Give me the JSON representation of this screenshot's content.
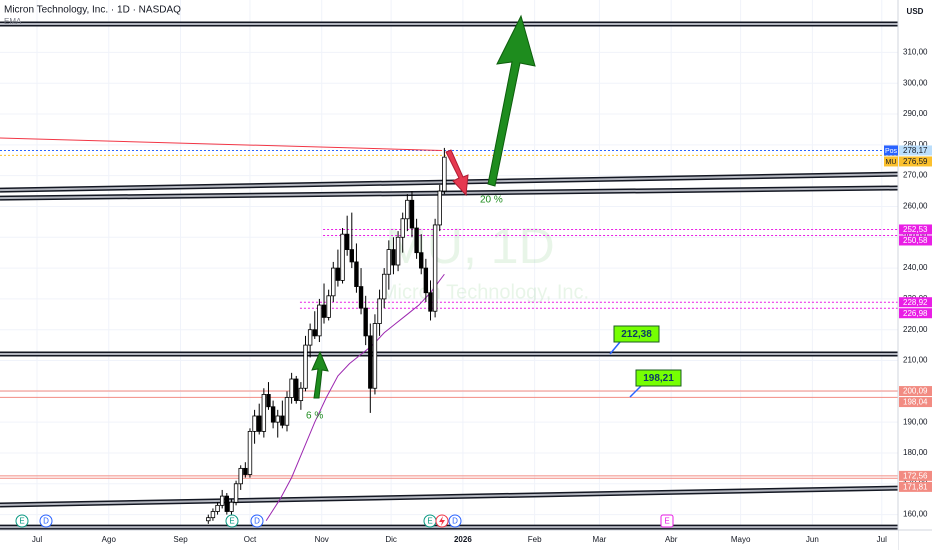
{
  "chart_data": {
    "type": "candlestick",
    "title": "Micron Technology, Inc. · 1D · NASDAQ",
    "currency": "USD",
    "indicator": "EMA",
    "watermark": "MU, 1D",
    "watermark_subtitle": "Micron Technology, Inc.",
    "xlim": [
      -16,
      372
    ],
    "xticks": [
      {
        "value": 0,
        "label": "Jul"
      },
      {
        "value": 31,
        "label": "Ago"
      },
      {
        "value": 62,
        "label": "Sep"
      },
      {
        "value": 92,
        "label": "Oct"
      },
      {
        "value": 123,
        "label": "Nov"
      },
      {
        "value": 153,
        "label": "Dic"
      },
      {
        "value": 184,
        "label": "2026"
      },
      {
        "value": 215,
        "label": "Feb"
      },
      {
        "value": 243,
        "label": "Mar"
      },
      {
        "value": 274,
        "label": "Abr"
      },
      {
        "value": 304,
        "label": "Mayo"
      },
      {
        "value": 335,
        "label": "Jun"
      },
      {
        "value": 365,
        "label": "Jul"
      }
    ],
    "ylim": [
      155,
      327
    ],
    "yticks": [
      {
        "value": 160,
        "label": "160,00"
      },
      {
        "value": 170,
        "label": "170,00"
      },
      {
        "value": 180,
        "label": "180,00"
      },
      {
        "value": 190,
        "label": "190,00"
      },
      {
        "value": 200,
        "label": "200,00"
      },
      {
        "value": 210,
        "label": "210,00"
      },
      {
        "value": 220,
        "label": "220,00"
      },
      {
        "value": 230,
        "label": "230,00"
      },
      {
        "value": 240,
        "label": "240,00"
      },
      {
        "value": 250,
        "label": "250,00"
      },
      {
        "value": 260,
        "label": "260,00"
      },
      {
        "value": 270,
        "label": "270,00"
      },
      {
        "value": 280,
        "label": "280,00"
      },
      {
        "value": 290,
        "label": "290,00"
      },
      {
        "value": 300,
        "label": "300,00"
      },
      {
        "value": 310,
        "label": "310,00"
      }
    ],
    "up_color": "#ffffff",
    "down_color": "#000000",
    "candles": {
      "x": [
        74,
        76,
        78,
        80,
        82,
        84,
        86,
        88,
        90,
        92,
        94,
        96,
        98,
        100,
        102,
        104,
        106,
        108,
        110,
        112,
        114,
        116,
        118,
        120,
        122,
        124,
        126,
        128,
        130,
        132,
        134,
        136,
        138,
        140,
        142,
        144,
        146,
        148,
        150,
        152,
        154,
        156,
        158,
        160,
        162,
        164,
        166,
        168,
        170,
        172,
        174,
        176
      ],
      "open": [
        158,
        159,
        161,
        163,
        166,
        161,
        164,
        170,
        175,
        173,
        187,
        192,
        187,
        199,
        195,
        190,
        192,
        189,
        198,
        204,
        197,
        201,
        215,
        220,
        218,
        228,
        224,
        231,
        240,
        236,
        251,
        246,
        242,
        234,
        227,
        218,
        201,
        222,
        230,
        238,
        246,
        241,
        250,
        256,
        262,
        253,
        245,
        240,
        232,
        226,
        254,
        265
      ],
      "high": [
        160,
        162,
        164,
        168,
        167,
        165,
        171,
        176,
        177,
        188,
        194,
        196,
        201,
        203,
        197,
        194,
        197,
        200,
        206,
        205,
        203,
        218,
        222,
        226,
        230,
        235,
        233,
        242,
        246,
        253,
        257,
        258,
        248,
        240,
        231,
        222,
        225,
        233,
        240,
        249,
        250,
        252,
        258,
        264,
        265,
        256,
        251,
        243,
        236,
        256,
        267,
        279
      ],
      "low": [
        157,
        158,
        160,
        162,
        160,
        160,
        163,
        168,
        172,
        172,
        183,
        186,
        185,
        194,
        188,
        185,
        188,
        187,
        196,
        196,
        194,
        200,
        211,
        217,
        216,
        222,
        223,
        229,
        234,
        235,
        244,
        240,
        232,
        225,
        215,
        193,
        199,
        218,
        227,
        233,
        238,
        239,
        245,
        252,
        250,
        243,
        238,
        229,
        223,
        224,
        252,
        264
      ],
      "close": [
        159,
        161,
        163,
        166,
        161,
        164,
        170,
        175,
        173,
        187,
        192,
        187,
        199,
        195,
        190,
        192,
        189,
        198,
        204,
        197,
        201,
        215,
        220,
        218,
        228,
        224,
        231,
        240,
        236,
        251,
        246,
        242,
        234,
        227,
        218,
        201,
        222,
        230,
        238,
        246,
        241,
        250,
        256,
        262,
        253,
        245,
        240,
        232,
        226,
        254,
        265,
        276
      ]
    },
    "ema": {
      "color": "#9c27b0",
      "x": [
        99,
        105,
        110,
        115,
        120,
        125,
        130,
        135,
        140,
        145,
        150,
        155,
        160,
        165,
        170,
        176
      ],
      "values": [
        158,
        165,
        172,
        181,
        190,
        198,
        205,
        209,
        212,
        215,
        219,
        222,
        225,
        228,
        232,
        238
      ]
    },
    "red_line": {
      "color": "#f23645",
      "x": [
        -16,
        175
      ],
      "y": [
        282.2,
        278.17
      ]
    },
    "trendlines": [
      {
        "x": [
          -16,
          372
        ],
        "y": [
          319.2,
          319.2
        ]
      },
      {
        "x": [
          -16,
          372
        ],
        "y": [
          265.3,
          270.5
        ]
      },
      {
        "x": [
          -16,
          372
        ],
        "y": [
          262.7,
          266.0
        ]
      },
      {
        "x": [
          -16,
          372
        ],
        "y": [
          212.1,
          212.1
        ]
      },
      {
        "x": [
          -16,
          372
        ],
        "y": [
          163.1,
          168.6
        ]
      },
      {
        "x": [
          -16,
          372
        ],
        "y": [
          155.95,
          155.95
        ]
      }
    ],
    "price_lines": [
      {
        "value": 278.17,
        "value_label": "278,17",
        "tag": "Pos",
        "color": "#2962ff",
        "style": "dotted",
        "from": -16
      },
      {
        "value": 276.59,
        "value_label": "276,59",
        "tag": "MU",
        "color": "#fbc02d",
        "style": "dotted",
        "from": -16
      },
      {
        "value": 252.53,
        "value_label": "252,53",
        "color": "#e91ee5",
        "style": "dotted",
        "from": 123.6
      },
      {
        "value": 250.58,
        "value_label": "250,58",
        "color": "#e91ee5",
        "style": "dotted",
        "from": 123.6
      },
      {
        "value": 228.92,
        "value_label": "228,92",
        "color": "#e91ee5",
        "style": "dotted",
        "from": 113.6
      },
      {
        "value": 226.98,
        "value_label": "226,98",
        "color": "#e91ee5",
        "style": "dotted",
        "from": 113.6
      },
      {
        "value": 200.09,
        "value_label": "200,09",
        "color": "#f28b82",
        "style": "solid",
        "from": -16
      },
      {
        "value": 198.04,
        "value_label": "198,04",
        "color": "#f28b82",
        "style": "solid",
        "from": -16
      },
      {
        "value": 172.56,
        "value_label": "172,56",
        "color": "#f28b82",
        "style": "solid",
        "from": -16
      },
      {
        "value": 171.81,
        "value_label": "171,81",
        "color": "#f28b82",
        "style": "solid",
        "from": -16
      }
    ],
    "annotations": [
      "20 %",
      "6 %",
      "212,38",
      "198,21"
    ],
    "events": [
      "E",
      "D",
      "E",
      "D",
      "E",
      "D",
      "E"
    ]
  }
}
